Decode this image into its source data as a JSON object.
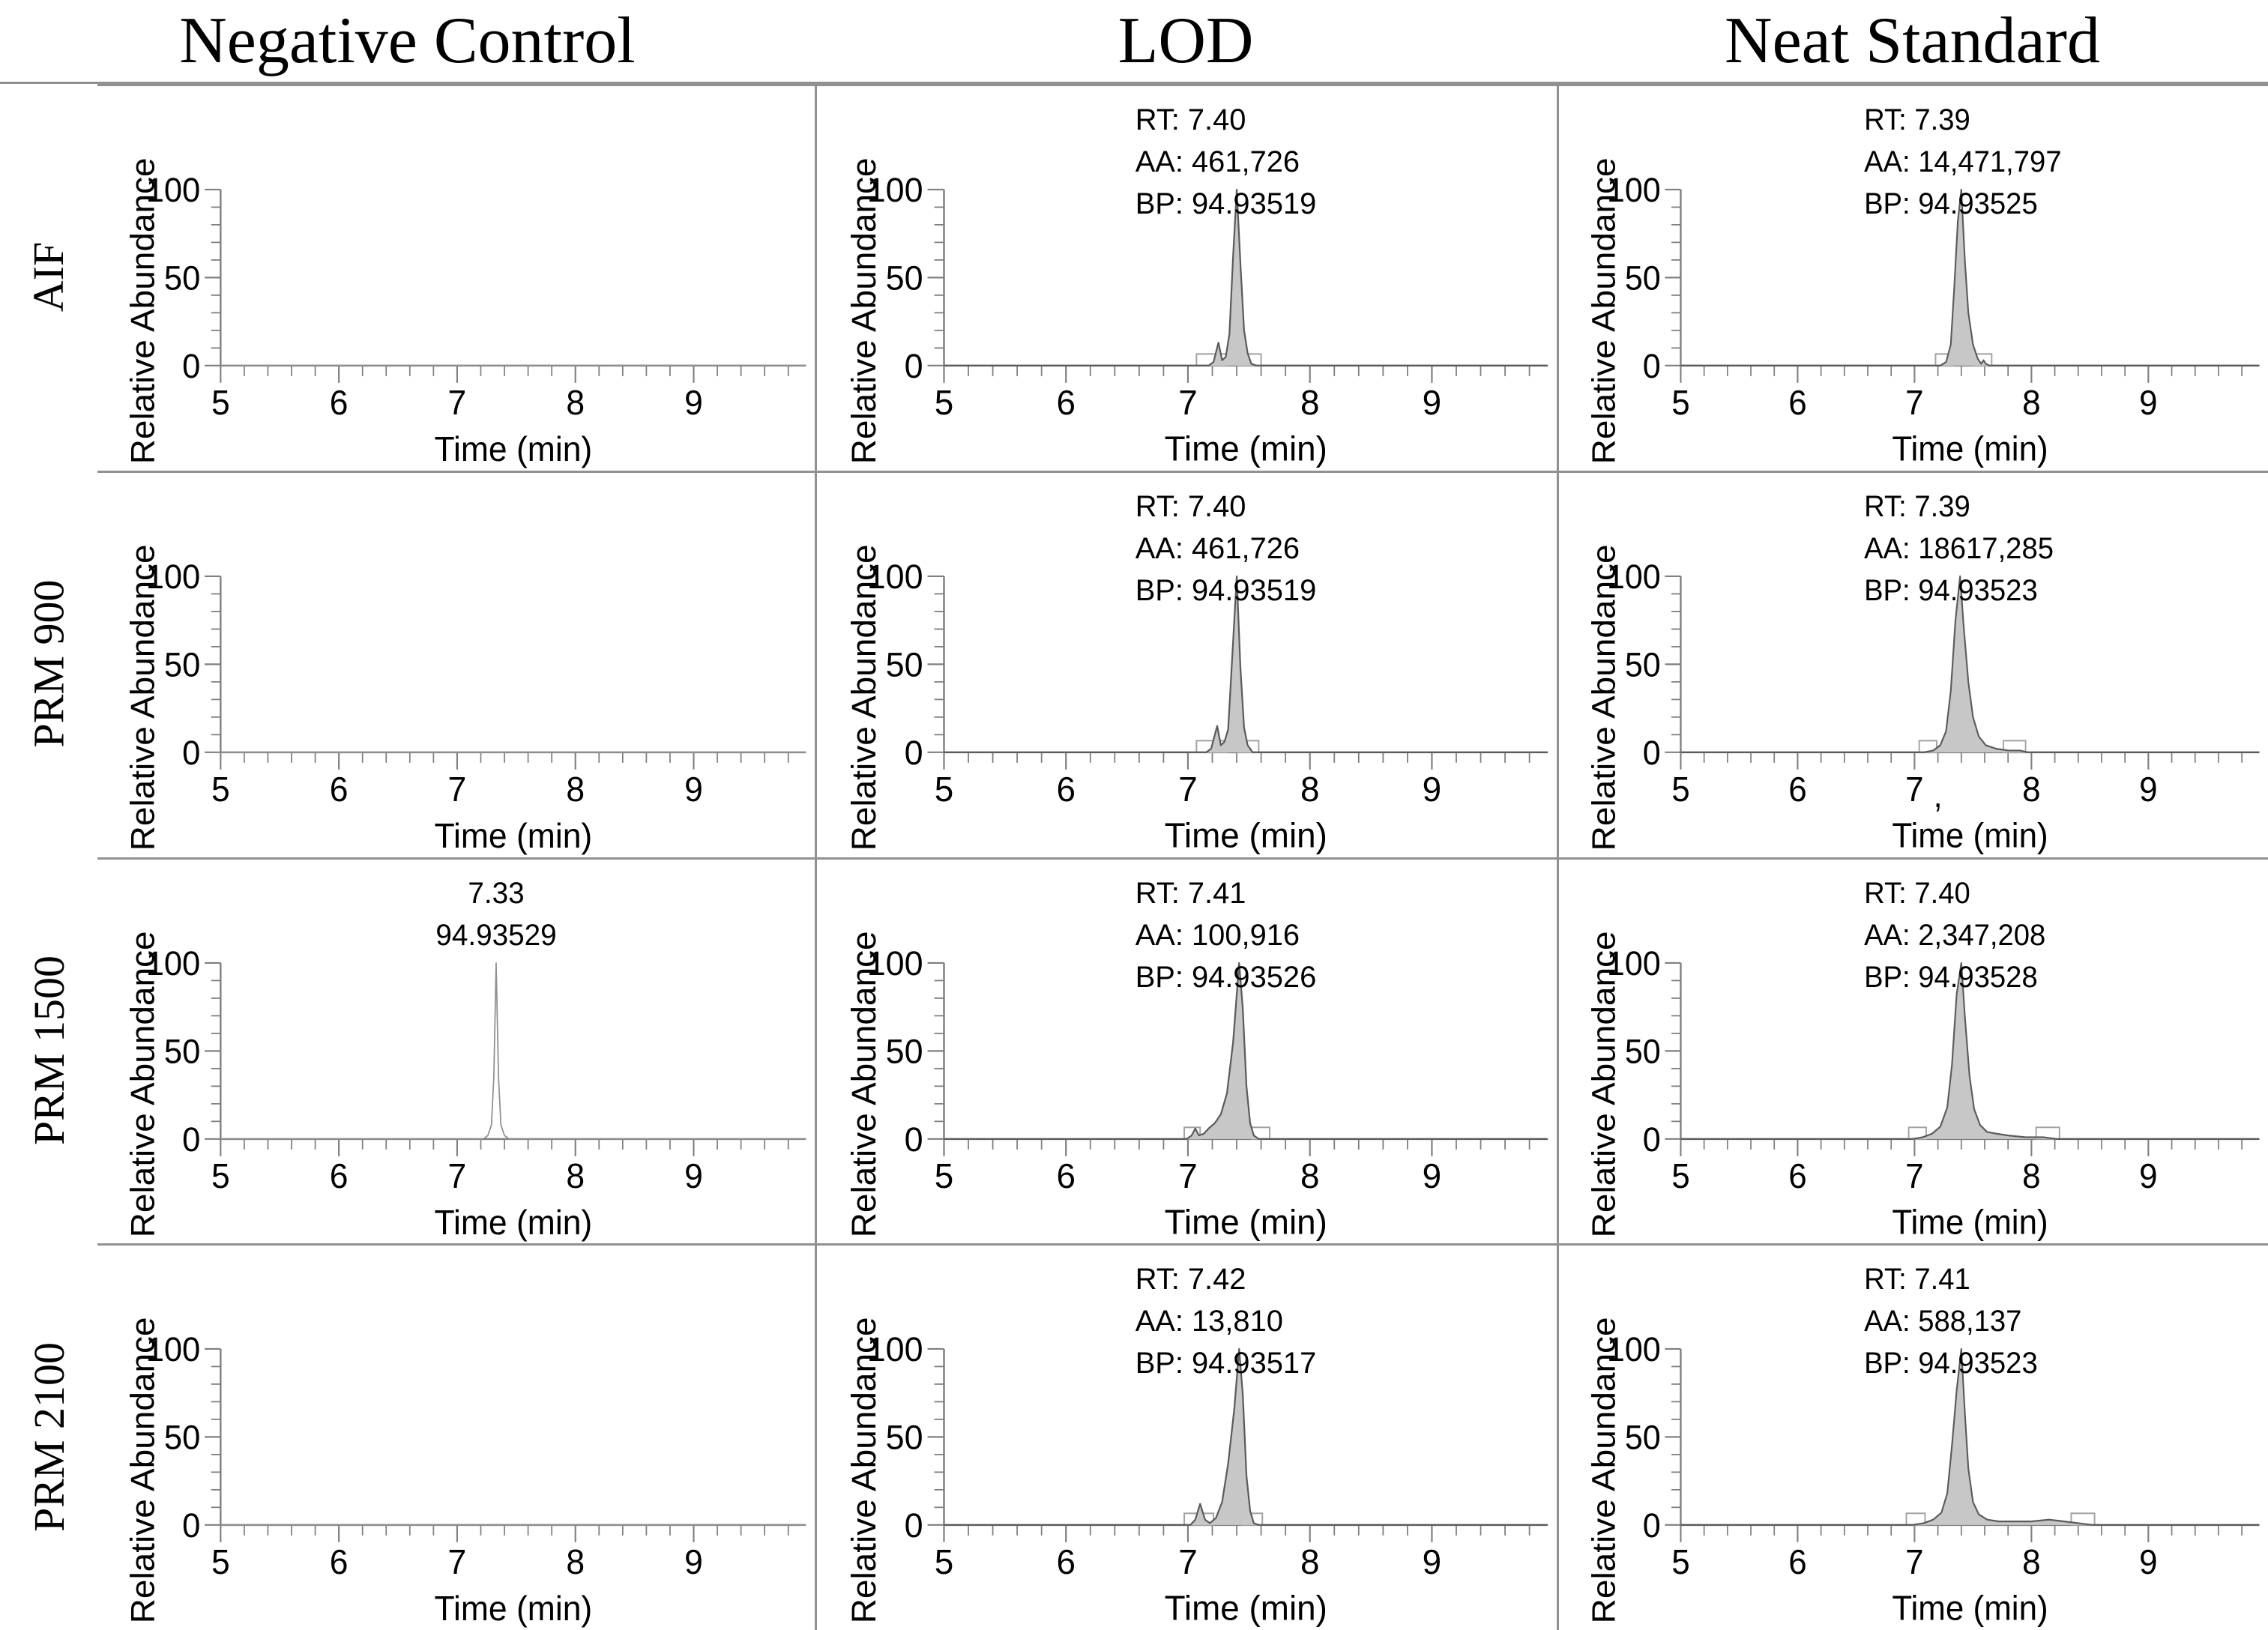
{
  "figure": {
    "columns": [
      "Negative Control",
      "LOD",
      "Neat Standard"
    ],
    "rows": [
      "AIF",
      "PRM 900",
      "PRM 1500",
      "PRM 2100"
    ]
  },
  "axes": {
    "x_label": "Time (min)",
    "y_label": "Relative Abundance",
    "x_ticks": [
      5,
      6,
      7,
      8,
      9
    ],
    "y_ticks": [
      0,
      50,
      100
    ],
    "x_min": 5,
    "x_max": 9.95,
    "y_min": 0,
    "y_max": 100,
    "x_minor_step": 0.2,
    "y_minor_step": 10,
    "grid": "off",
    "legend": "none"
  },
  "style": {
    "peak_fill": "#c7c7c7",
    "peak_stroke": "#5a5a5a",
    "nc_peak_stroke": "#8f8f8f",
    "axis_color": "#7f7f7f",
    "box_stroke": "#a2a2a2",
    "divider_color": "#919191",
    "text_color": "#000000"
  },
  "chart_data": [
    {
      "type": "line",
      "row": "AIF",
      "column": "Negative Control",
      "annotations": [],
      "annotation_anchor": "left",
      "filled": false,
      "boxes": [],
      "trace": [
        [
          5,
          0
        ],
        [
          9.95,
          0
        ]
      ]
    },
    {
      "type": "area",
      "row": "AIF",
      "column": "LOD",
      "annotations": [
        "RT: 7.40",
        "AA: 461,726",
        "BP: 94.93519"
      ],
      "annotation_anchor": "left",
      "filled": true,
      "boxes": [
        [
          7.07,
          7.33
        ],
        [
          7.41,
          7.6
        ]
      ],
      "trace": [
        [
          5,
          0
        ],
        [
          7.17,
          0
        ],
        [
          7.21,
          2
        ],
        [
          7.25,
          13
        ],
        [
          7.28,
          3
        ],
        [
          7.31,
          5
        ],
        [
          7.34,
          18
        ],
        [
          7.37,
          62
        ],
        [
          7.4,
          100
        ],
        [
          7.43,
          58
        ],
        [
          7.46,
          20
        ],
        [
          7.49,
          7
        ],
        [
          7.52,
          1
        ],
        [
          7.56,
          0
        ],
        [
          9.95,
          0
        ]
      ]
    },
    {
      "type": "area",
      "row": "AIF",
      "column": "Neat Standard",
      "annotations": [
        "RT: 7.39",
        "AA: 14,471,797",
        "BP: 94.93525"
      ],
      "annotation_anchor": "left",
      "filled": true,
      "boxes": [
        [
          7.18,
          7.33
        ],
        [
          7.5,
          7.66
        ]
      ],
      "trace": [
        [
          5,
          0
        ],
        [
          7.22,
          0
        ],
        [
          7.27,
          2
        ],
        [
          7.31,
          12
        ],
        [
          7.34,
          45
        ],
        [
          7.37,
          82
        ],
        [
          7.4,
          100
        ],
        [
          7.43,
          60
        ],
        [
          7.46,
          30
        ],
        [
          7.5,
          12
        ],
        [
          7.54,
          4
        ],
        [
          7.57,
          1
        ],
        [
          7.59,
          3
        ],
        [
          7.61,
          1
        ],
        [
          7.64,
          0
        ],
        [
          9.95,
          0
        ]
      ]
    },
    {
      "type": "line",
      "row": "PRM 900",
      "column": "Negative Control",
      "annotations": [],
      "annotation_anchor": "left",
      "filled": false,
      "boxes": [],
      "trace": [
        [
          5,
          0
        ],
        [
          9.95,
          0
        ]
      ]
    },
    {
      "type": "area",
      "row": "PRM 900",
      "column": "LOD",
      "annotations": [
        "RT: 7.40",
        "AA: 461,726",
        "BP: 94.93519"
      ],
      "annotation_anchor": "left",
      "filled": true,
      "boxes": [
        [
          7.07,
          7.33
        ],
        [
          7.41,
          7.58
        ]
      ],
      "trace": [
        [
          5,
          0
        ],
        [
          7.15,
          0
        ],
        [
          7.19,
          2
        ],
        [
          7.24,
          15
        ],
        [
          7.27,
          4
        ],
        [
          7.3,
          6
        ],
        [
          7.33,
          13
        ],
        [
          7.36,
          50
        ],
        [
          7.4,
          100
        ],
        [
          7.43,
          48
        ],
        [
          7.46,
          14
        ],
        [
          7.49,
          4
        ],
        [
          7.53,
          0
        ],
        [
          9.95,
          0
        ]
      ]
    },
    {
      "type": "area",
      "row": "PRM 900",
      "column": "Neat Standard",
      "annotations": [
        "RT: 7.39",
        "AA: 18617,285",
        "BP: 94.93523"
      ],
      "annotation_anchor": "left",
      "axis_note": {
        "text": ",",
        "x": 7.2
      },
      "filled": true,
      "boxes": [
        [
          7.04,
          7.19
        ],
        [
          7.76,
          7.95
        ]
      ],
      "trace": [
        [
          5,
          0
        ],
        [
          7.08,
          0
        ],
        [
          7.16,
          1
        ],
        [
          7.22,
          4
        ],
        [
          7.27,
          12
        ],
        [
          7.31,
          35
        ],
        [
          7.35,
          75
        ],
        [
          7.39,
          100
        ],
        [
          7.42,
          72
        ],
        [
          7.46,
          40
        ],
        [
          7.5,
          20
        ],
        [
          7.55,
          9
        ],
        [
          7.61,
          4
        ],
        [
          7.7,
          2
        ],
        [
          7.8,
          1
        ],
        [
          7.9,
          1
        ],
        [
          7.97,
          0
        ],
        [
          9.95,
          0
        ]
      ]
    },
    {
      "type": "line",
      "row": "PRM 1500",
      "column": "Negative Control",
      "annotations": [
        "7.33",
        "94.93529"
      ],
      "annotation_anchor": "center",
      "annotation_x": 7.33,
      "filled": false,
      "boxes": [],
      "trace": [
        [
          5,
          0
        ],
        [
          7.22,
          0
        ],
        [
          7.26,
          2
        ],
        [
          7.29,
          8
        ],
        [
          7.31,
          35
        ],
        [
          7.33,
          100
        ],
        [
          7.35,
          35
        ],
        [
          7.37,
          8
        ],
        [
          7.4,
          2
        ],
        [
          7.44,
          0
        ],
        [
          9.95,
          0
        ]
      ]
    },
    {
      "type": "area",
      "row": "PRM 1500",
      "column": "LOD",
      "annotations": [
        "RT: 7.41",
        "AA: 100,916",
        "BP: 94.93526"
      ],
      "annotation_anchor": "left",
      "filled": true,
      "boxes": [
        [
          6.97,
          7.1
        ],
        [
          7.52,
          7.67
        ]
      ],
      "trace": [
        [
          5,
          0
        ],
        [
          6.99,
          0
        ],
        [
          7.03,
          2
        ],
        [
          7.06,
          6
        ],
        [
          7.09,
          2
        ],
        [
          7.13,
          3
        ],
        [
          7.17,
          6
        ],
        [
          7.22,
          9
        ],
        [
          7.27,
          14
        ],
        [
          7.32,
          26
        ],
        [
          7.37,
          55
        ],
        [
          7.42,
          100
        ],
        [
          7.45,
          74
        ],
        [
          7.48,
          30
        ],
        [
          7.51,
          9
        ],
        [
          7.54,
          2
        ],
        [
          7.58,
          0
        ],
        [
          9.95,
          0
        ]
      ]
    },
    {
      "type": "area",
      "row": "PRM 1500",
      "column": "Neat Standard",
      "annotations": [
        "RT: 7.40",
        "AA: 2,347,208",
        "BP: 94.93528"
      ],
      "annotation_anchor": "left",
      "filled": true,
      "boxes": [
        [
          6.95,
          7.1
        ],
        [
          8.04,
          8.24
        ]
      ],
      "trace": [
        [
          5,
          0
        ],
        [
          6.98,
          0
        ],
        [
          7.07,
          1
        ],
        [
          7.15,
          3
        ],
        [
          7.22,
          7
        ],
        [
          7.28,
          18
        ],
        [
          7.32,
          42
        ],
        [
          7.36,
          82
        ],
        [
          7.4,
          100
        ],
        [
          7.43,
          70
        ],
        [
          7.47,
          36
        ],
        [
          7.51,
          17
        ],
        [
          7.56,
          8
        ],
        [
          7.62,
          4
        ],
        [
          7.7,
          3
        ],
        [
          7.8,
          2
        ],
        [
          7.95,
          1
        ],
        [
          8.1,
          1
        ],
        [
          8.22,
          0
        ],
        [
          9.95,
          0
        ]
      ]
    },
    {
      "type": "line",
      "row": "PRM 2100",
      "column": "Negative Control",
      "annotations": [],
      "annotation_anchor": "left",
      "filled": false,
      "boxes": [],
      "trace": [
        [
          5,
          0
        ],
        [
          9.95,
          0
        ]
      ]
    },
    {
      "type": "area",
      "row": "PRM 2100",
      "column": "LOD",
      "annotations": [
        "RT: 7.42",
        "AA: 13,810",
        "BP: 94.93517"
      ],
      "annotation_anchor": "left",
      "filled": true,
      "boxes": [
        [
          6.97,
          7.21
        ],
        [
          7.44,
          7.61
        ]
      ],
      "trace": [
        [
          5,
          0
        ],
        [
          7.02,
          0
        ],
        [
          7.06,
          3
        ],
        [
          7.1,
          12
        ],
        [
          7.14,
          3
        ],
        [
          7.18,
          1
        ],
        [
          7.23,
          4
        ],
        [
          7.28,
          13
        ],
        [
          7.33,
          35
        ],
        [
          7.38,
          66
        ],
        [
          7.42,
          100
        ],
        [
          7.45,
          74
        ],
        [
          7.48,
          28
        ],
        [
          7.51,
          8
        ],
        [
          7.54,
          1
        ],
        [
          7.58,
          0
        ],
        [
          9.95,
          0
        ]
      ]
    },
    {
      "type": "area",
      "row": "PRM 2100",
      "column": "Neat Standard",
      "annotations": [
        "RT: 7.41",
        "AA: 588,137",
        "BP: 94.93523"
      ],
      "annotation_anchor": "left",
      "filled": true,
      "boxes": [
        [
          6.93,
          7.09
        ],
        [
          8.34,
          8.54
        ]
      ],
      "trace": [
        [
          5,
          0
        ],
        [
          6.98,
          0
        ],
        [
          7.08,
          1
        ],
        [
          7.16,
          3
        ],
        [
          7.23,
          7
        ],
        [
          7.28,
          18
        ],
        [
          7.32,
          45
        ],
        [
          7.36,
          76
        ],
        [
          7.4,
          100
        ],
        [
          7.43,
          64
        ],
        [
          7.46,
          32
        ],
        [
          7.5,
          13
        ],
        [
          7.55,
          6
        ],
        [
          7.62,
          3
        ],
        [
          7.72,
          2
        ],
        [
          7.85,
          2
        ],
        [
          8,
          2
        ],
        [
          8.15,
          3
        ],
        [
          8.28,
          2
        ],
        [
          8.4,
          1
        ],
        [
          8.52,
          0
        ],
        [
          9.95,
          0
        ]
      ]
    }
  ]
}
